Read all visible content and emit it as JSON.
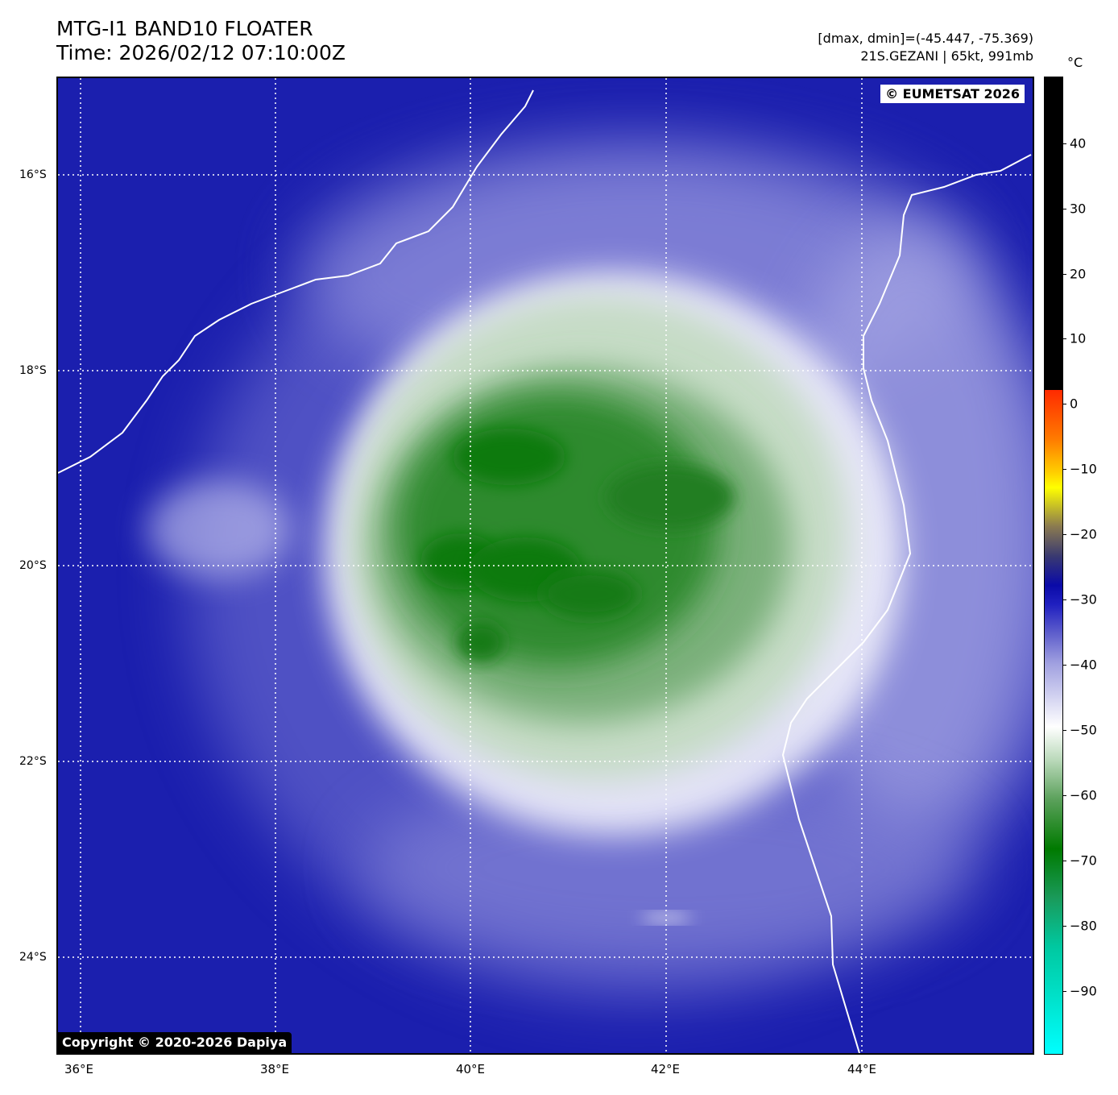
{
  "header": {
    "title_line1": "MTG-I1 BAND10 FLOATER",
    "title_line2": "Time: 2026/02/12 07:10:00Z",
    "info_line1": "[dmax, dmin]=(-45.447, -75.369)",
    "info_line2": "21S.GEZANI | 65kt, 991mb"
  },
  "map": {
    "eumetsat_badge": "© EUMETSAT 2026",
    "copyright_badge": "Copyright © 2020-2026 Dapiya",
    "x_ticks": [
      "36°E",
      "38°E",
      "40°E",
      "42°E",
      "44°E"
    ],
    "y_ticks": [
      "16°S",
      "18°S",
      "20°S",
      "22°S",
      "24°S"
    ],
    "background_color": "#1b1fae",
    "coastline_color": "#ffffff",
    "gridline_style": "dotted white"
  },
  "colorbar": {
    "unit": "°C",
    "ticks": [
      "40",
      "30",
      "20",
      "10",
      "0",
      "−10",
      "−20",
      "−30",
      "−40",
      "−50",
      "−60",
      "−70",
      "−80",
      "−90"
    ]
  }
}
